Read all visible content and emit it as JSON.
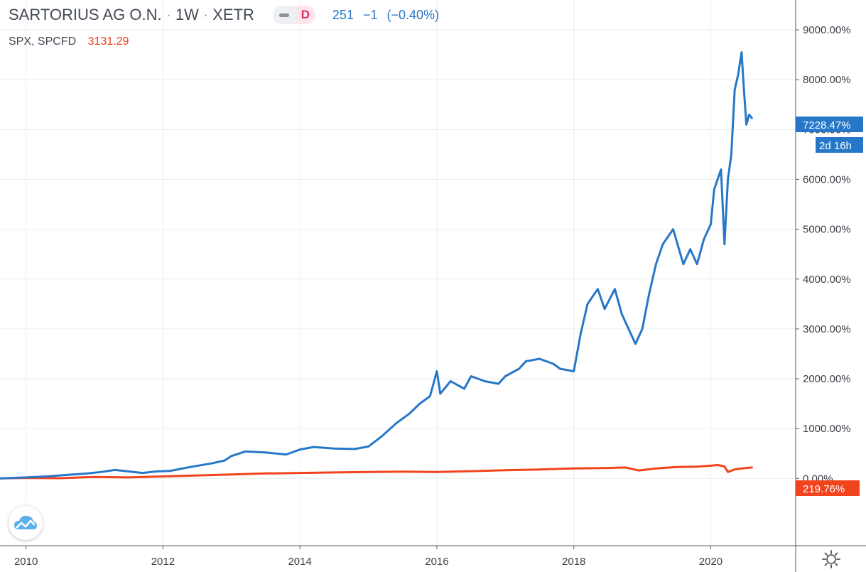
{
  "legend": {
    "symbol": "SARTORIUS AG O.N.",
    "interval": "1W",
    "exchange": "XETR",
    "mode_badge": "D",
    "last_price": "251",
    "change": "−1",
    "change_pct": "(−0.40%)",
    "compare_symbol": "SPX, SPCFD",
    "compare_value": "3131.29"
  },
  "colors": {
    "sartorius": "#2777c8",
    "spx": "#f1431c",
    "grid": "#ebedf0",
    "axis_text": "#3b3f47",
    "axis_line": "#555a63"
  },
  "labels": {
    "sartorius_last": "7228.47%",
    "countdown": "2d 16h",
    "spx_last": "219.76%"
  },
  "chart_data": {
    "type": "line",
    "title": "SARTORIUS AG O.N. · 1W · XETR",
    "y_unit": "percent change",
    "ylim": [
      -1350,
      9600
    ],
    "xlim": [
      2009.62,
      2021.24
    ],
    "y_ticks": [
      0,
      1000,
      2000,
      3000,
      4000,
      5000,
      6000,
      7000,
      8000,
      9000
    ],
    "y_tick_labels": [
      "0.00%",
      "1000.00%",
      "2000.00%",
      "3000.00%",
      "4000.00%",
      "5000.00%",
      "6000.00%",
      "7000.00%",
      "8000.00%",
      "9000.00%"
    ],
    "x_ticks": [
      2010,
      2012,
      2014,
      2016,
      2018,
      2020
    ],
    "x_tick_labels": [
      "2010",
      "2012",
      "2014",
      "2016",
      "2018",
      "2020"
    ],
    "grid": true,
    "series": [
      {
        "name": "SARTORIUS AG O.N.",
        "x": [
          2009.62,
          2009.8,
          2010.0,
          2010.3,
          2010.6,
          2010.9,
          2011.1,
          2011.3,
          2011.5,
          2011.7,
          2011.9,
          2012.1,
          2012.4,
          2012.7,
          2012.9,
          2013.0,
          2013.2,
          2013.5,
          2013.8,
          2014.0,
          2014.2,
          2014.5,
          2014.8,
          2015.0,
          2015.2,
          2015.4,
          2015.6,
          2015.75,
          2015.9,
          2016.0,
          2016.05,
          2016.2,
          2016.4,
          2016.5,
          2016.7,
          2016.9,
          2017.0,
          2017.2,
          2017.3,
          2017.5,
          2017.7,
          2017.8,
          2018.0,
          2018.1,
          2018.2,
          2018.35,
          2018.45,
          2018.6,
          2018.7,
          2018.8,
          2018.9,
          2019.0,
          2019.1,
          2019.2,
          2019.3,
          2019.45,
          2019.6,
          2019.7,
          2019.8,
          2019.9,
          2020.0,
          2020.05,
          2020.15,
          2020.2,
          2020.25,
          2020.3,
          2020.35,
          2020.4,
          2020.45,
          2020.48,
          2020.52,
          2020.56,
          2020.6
        ],
        "values": [
          0,
          10,
          20,
          40,
          70,
          100,
          130,
          170,
          140,
          110,
          140,
          150,
          230,
          300,
          360,
          450,
          540,
          520,
          480,
          580,
          630,
          600,
          590,
          640,
          850,
          1100,
          1300,
          1500,
          1650,
          2150,
          1700,
          1950,
          1800,
          2050,
          1950,
          1900,
          2050,
          2200,
          2350,
          2400,
          2300,
          2200,
          2150,
          2900,
          3500,
          3800,
          3400,
          3800,
          3300,
          3000,
          2700,
          3000,
          3700,
          4300,
          4700,
          5000,
          4300,
          4600,
          4300,
          4800,
          5100,
          5800,
          6200,
          4700,
          6000,
          6500,
          7800,
          8100,
          8550,
          7900,
          7100,
          7300,
          7230
        ]
      },
      {
        "name": "SPX, SPCFD",
        "x": [
          2009.62,
          2010.0,
          2010.5,
          2011.0,
          2011.5,
          2012.0,
          2012.5,
          2013.0,
          2013.5,
          2014.0,
          2014.5,
          2015.0,
          2015.5,
          2016.0,
          2016.5,
          2017.0,
          2017.5,
          2018.0,
          2018.5,
          2018.75,
          2018.95,
          2019.2,
          2019.5,
          2019.8,
          2020.0,
          2020.1,
          2020.2,
          2020.25,
          2020.35,
          2020.45,
          2020.6
        ],
        "values": [
          0,
          10,
          5,
          30,
          20,
          40,
          60,
          80,
          100,
          110,
          120,
          130,
          135,
          130,
          145,
          165,
          180,
          200,
          210,
          220,
          160,
          200,
          230,
          235,
          255,
          270,
          240,
          130,
          180,
          200,
          220
        ]
      }
    ]
  }
}
